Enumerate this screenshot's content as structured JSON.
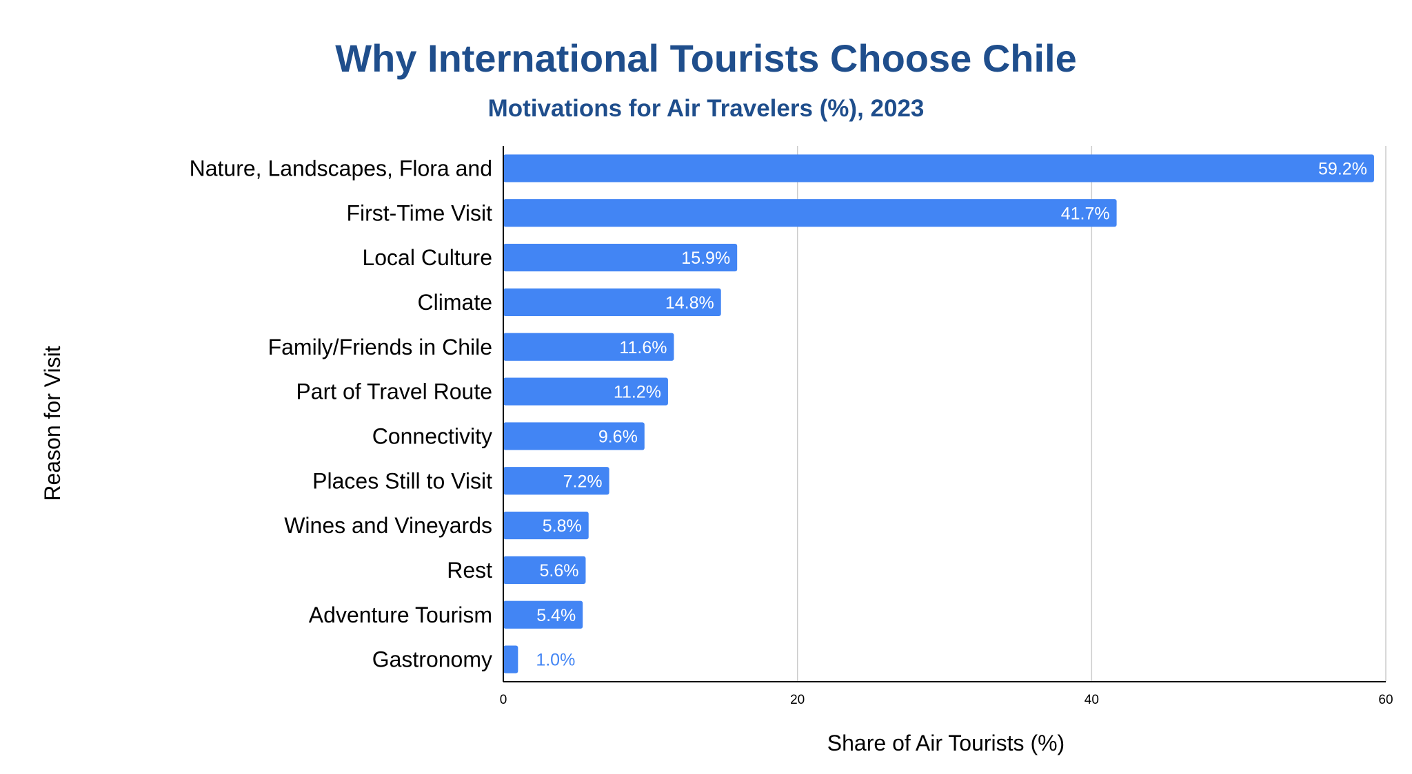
{
  "chart_data": {
    "type": "bar",
    "orientation": "horizontal",
    "title": "Why International Tourists Choose Chile",
    "subtitle": "Motivations for Air Travelers (%), 2023",
    "xlabel": "Share of Air Tourists (%)",
    "ylabel": "Reason for Visit",
    "xlim": [
      0,
      60
    ],
    "xticks": [
      0,
      20,
      40,
      60
    ],
    "grid": true,
    "bar_color": "#4285f4",
    "categories": [
      "Nature, Landscapes, Flora and",
      "First-Time Visit",
      "Local Culture",
      "Climate",
      "Family/Friends in Chile",
      "Part of Travel Route",
      "Connectivity",
      "Places Still to Visit",
      "Wines and Vineyards",
      "Rest",
      "Adventure Tourism",
      "Gastronomy"
    ],
    "values": [
      59.2,
      41.7,
      15.9,
      14.8,
      11.6,
      11.2,
      9.6,
      7.2,
      5.8,
      5.6,
      5.4,
      1.0
    ],
    "value_labels": [
      "59.2%",
      "41.7%",
      "15.9%",
      "14.8%",
      "11.6%",
      "11.2%",
      "9.6%",
      "7.2%",
      "5.8%",
      "5.6%",
      "5.4%",
      "1.0%"
    ]
  }
}
